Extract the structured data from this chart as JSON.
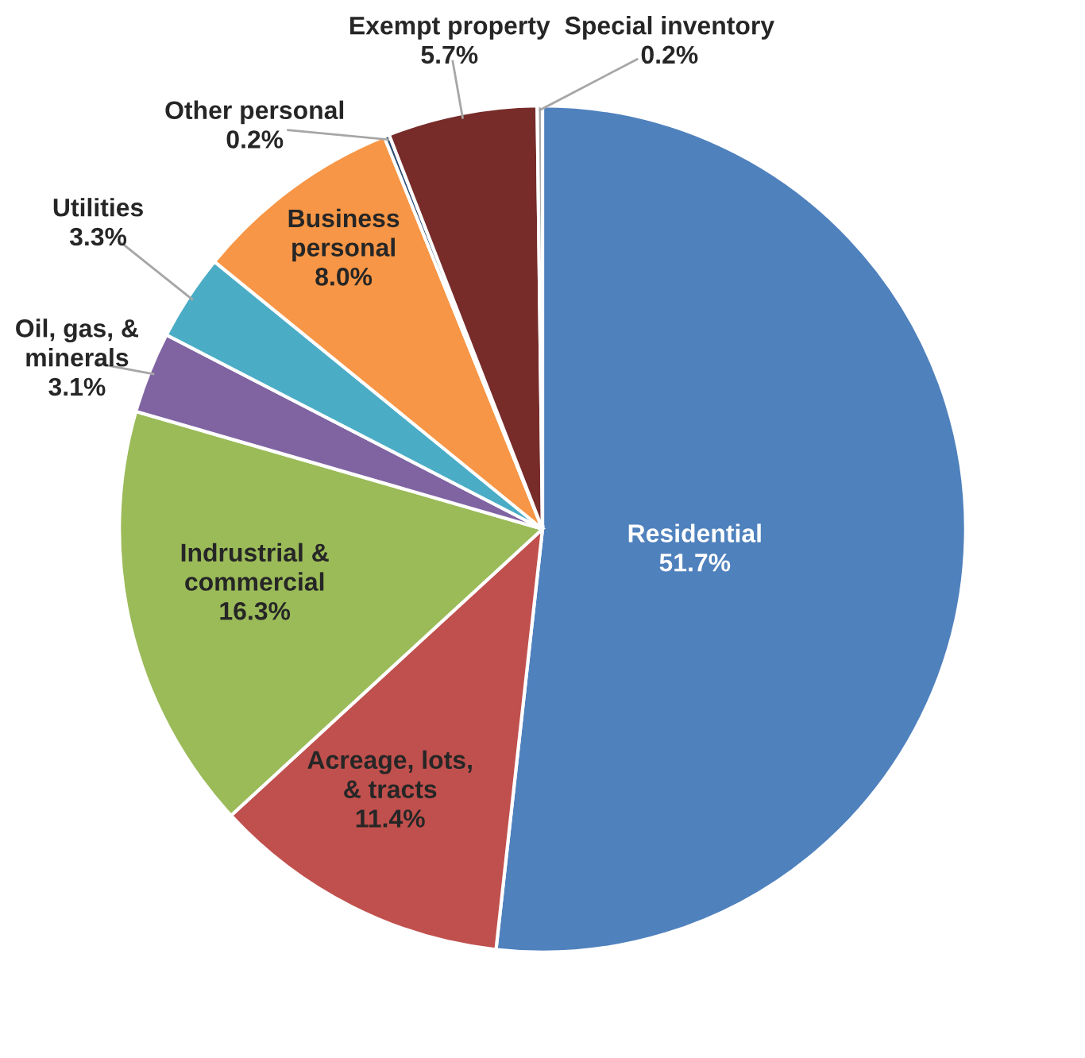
{
  "chart_data": {
    "type": "pie",
    "categories": [
      "Residential",
      "Acreage, lots,\n& tracts",
      "Indrustrial &\ncommercial",
      "Oil, gas, &\nminerals",
      "Utilities",
      "Business\npersonal",
      "Other personal",
      "Exempt property",
      "Special inventory"
    ],
    "values": [
      51.7,
      11.4,
      16.3,
      3.1,
      3.3,
      8.0,
      0.2,
      5.7,
      0.2
    ],
    "colors": [
      "#4f81bd",
      "#c0504d",
      "#9bbb59",
      "#8064a2",
      "#4bacc6",
      "#f79646",
      "#2c4d75",
      "#772c2a",
      "#a5a5a5"
    ],
    "value_labels": [
      "51.7%",
      "11.4%",
      "16.3%",
      "3.1%",
      "3.3%",
      "8.0%",
      "0.2%",
      "5.7%",
      "0.2%"
    ]
  }
}
